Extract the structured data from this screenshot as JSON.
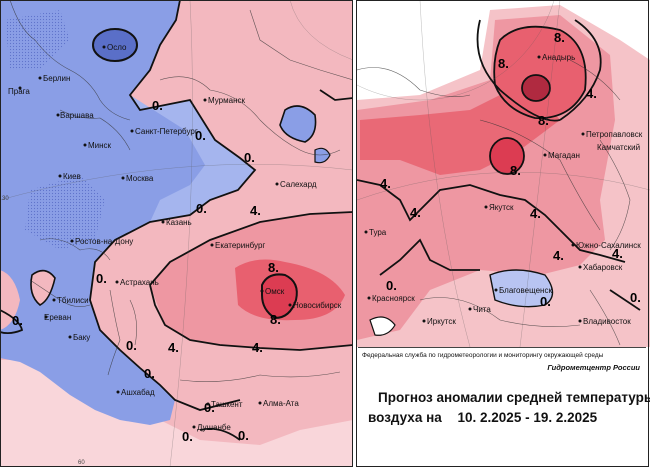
{
  "colors": {
    "cold": "#8a9ee6",
    "cold_light": "#b8c4f2",
    "warm_light": "#f5c3c8",
    "warm": "#ee97a2",
    "warm_strong": "#e8606f",
    "warm_core": "#dc3c52",
    "outline": "#111111"
  },
  "left_map": {
    "isoline_labels": [
      {
        "id": "zero-1",
        "text": "0."
      },
      {
        "id": "zero-2",
        "text": "0."
      },
      {
        "id": "zero-3",
        "text": "0."
      },
      {
        "id": "zero-4",
        "text": "0."
      },
      {
        "id": "zero-5",
        "text": "0."
      },
      {
        "id": "zero-6",
        "text": "0."
      },
      {
        "id": "zero-7",
        "text": "0."
      },
      {
        "id": "zero-8",
        "text": "0."
      },
      {
        "id": "zero-9",
        "text": "0."
      },
      {
        "id": "zero-10",
        "text": "0."
      },
      {
        "id": "zero-11",
        "text": "0."
      },
      {
        "id": "four-1",
        "text": "4."
      },
      {
        "id": "four-2",
        "text": "4."
      },
      {
        "id": "four-3",
        "text": "4."
      },
      {
        "id": "eight-1",
        "text": "8."
      },
      {
        "id": "eight-2",
        "text": "8."
      }
    ],
    "cities": [
      {
        "id": "oslo",
        "name": "Осло"
      },
      {
        "id": "berlin",
        "name": "Берлин"
      },
      {
        "id": "praga",
        "name": "Прага"
      },
      {
        "id": "varshava",
        "name": "Варшава"
      },
      {
        "id": "minsk",
        "name": "Минск"
      },
      {
        "id": "kiev",
        "name": "Киев"
      },
      {
        "id": "moskva",
        "name": "Москва"
      },
      {
        "id": "spb",
        "name": "Санкт-Петербург"
      },
      {
        "id": "murmansk",
        "name": "Мурманск"
      },
      {
        "id": "salekhard",
        "name": "Салехард"
      },
      {
        "id": "kazan",
        "name": "Казань"
      },
      {
        "id": "ekaterinburg",
        "name": "Екатеринбург"
      },
      {
        "id": "rostov",
        "name": "Ростов-на-Дону"
      },
      {
        "id": "astrakhan",
        "name": "Астрахань"
      },
      {
        "id": "tbilisi",
        "name": "Тбилиси"
      },
      {
        "id": "erevan",
        "name": "Ереван"
      },
      {
        "id": "baku",
        "name": "Баку"
      },
      {
        "id": "omsk",
        "name": "Омск"
      },
      {
        "id": "novosibirsk",
        "name": "Новосибирск"
      },
      {
        "id": "ashkhabad",
        "name": "Ашхабад"
      },
      {
        "id": "tashkent",
        "name": "Ташкент"
      },
      {
        "id": "alma-ata",
        "name": "Алма-Ата"
      },
      {
        "id": "dushanbe",
        "name": "Душанбе"
      }
    ],
    "edge_ticks": {
      "left": "30",
      "bottom": "60"
    }
  },
  "right_map": {
    "isoline_labels": [
      {
        "id": "r-eight-1",
        "text": "8."
      },
      {
        "id": "r-eight-2",
        "text": "8."
      },
      {
        "id": "r-eight-3",
        "text": "8."
      },
      {
        "id": "r-eight-4",
        "text": "8."
      },
      {
        "id": "r-four-1",
        "text": "4."
      },
      {
        "id": "r-four-2",
        "text": "4."
      },
      {
        "id": "r-four-3",
        "text": "4."
      },
      {
        "id": "r-four-4",
        "text": "4."
      },
      {
        "id": "r-four-5",
        "text": "4."
      },
      {
        "id": "r-four-6",
        "text": "4."
      },
      {
        "id": "r-zero-1",
        "text": "0."
      },
      {
        "id": "r-zero-2",
        "text": "0."
      },
      {
        "id": "r-zero-3",
        "text": "0."
      }
    ],
    "cities": [
      {
        "id": "anadyr",
        "name": "Анадырь"
      },
      {
        "id": "petropavlovsk",
        "name": "Петропавловск"
      },
      {
        "id": "kamchatsky",
        "name": "Камчатский"
      },
      {
        "id": "magadan",
        "name": "Магадан"
      },
      {
        "id": "yakutsk",
        "name": "Якутск"
      },
      {
        "id": "tura",
        "name": "Тура"
      },
      {
        "id": "yuzhno",
        "name": "Южно-Сахалинск"
      },
      {
        "id": "khabarovsk",
        "name": "Хабаровск"
      },
      {
        "id": "krasnoyarsk",
        "name": "Красноярск"
      },
      {
        "id": "blagoveshchensk",
        "name": "Благовещенск"
      },
      {
        "id": "chita",
        "name": "Чита"
      },
      {
        "id": "irkutsk",
        "name": "Иркутск"
      },
      {
        "id": "vladivostok",
        "name": "Владивосток"
      }
    ]
  },
  "caption": {
    "agency": "Федеральная служба по гидрометеорологии и мониторингу окружающей среды",
    "center": "Гидрометцентр России",
    "title_line1": "Прогноз аномалии средней температуры",
    "title_line2_prefix": "воздуха на",
    "date_range": "10. 2.2025 - 19. 2.2025"
  }
}
